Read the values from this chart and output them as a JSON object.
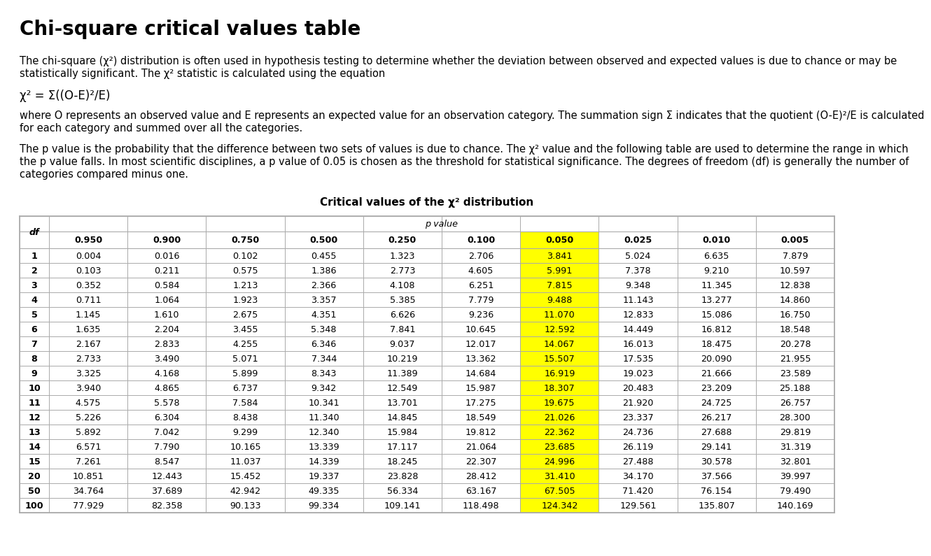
{
  "title": "Chi-square critical values table",
  "background_color": "#ffffff",
  "text_color": "#000000",
  "para1_line1": "The chi-square (χ²) distribution is often used in hypothesis testing to determine whether the deviation between observed and expected values is due to chance or may be",
  "para1_line2": "statistically significant. The χ² statistic is calculated using the equation",
  "equation": "χ² = Σ((O-E)²/E)",
  "para2_line1": "where O represents an observed value and E represents an expected value for an observation category. The summation sign Σ indicates that the quotient (O-E)²/E is calculated",
  "para2_line2": "for each category and summed over all the categories.",
  "para3_line1": "The p value is the probability that the difference between two sets of values is due to chance. The χ² value and the following table are used to determine the range in which",
  "para3_line2": "the p value falls. In most scientific disciplines, a p value of 0.05 is chosen as the threshold for statistical significance. The degrees of freedom (df) is generally the number of",
  "para3_line3": "categories compared minus one.",
  "table_title": "Critical values of the χ² distribution",
  "p_value_label": "p value",
  "col_headers": [
    "df",
    "0.950",
    "0.900",
    "0.750",
    "0.500",
    "0.250",
    "0.100",
    "0.050",
    "0.025",
    "0.010",
    "0.005"
  ],
  "highlight_col_index": 7,
  "highlight_color": "#ffff00",
  "border_color": "#aaaaaa",
  "table_data": [
    [
      "1",
      "0.004",
      "0.016",
      "0.102",
      "0.455",
      "1.323",
      "2.706",
      "3.841",
      "5.024",
      "6.635",
      "7.879"
    ],
    [
      "2",
      "0.103",
      "0.211",
      "0.575",
      "1.386",
      "2.773",
      "4.605",
      "5.991",
      "7.378",
      "9.210",
      "10.597"
    ],
    [
      "3",
      "0.352",
      "0.584",
      "1.213",
      "2.366",
      "4.108",
      "6.251",
      "7.815",
      "9.348",
      "11.345",
      "12.838"
    ],
    [
      "4",
      "0.711",
      "1.064",
      "1.923",
      "3.357",
      "5.385",
      "7.779",
      "9.488",
      "11.143",
      "13.277",
      "14.860"
    ],
    [
      "5",
      "1.145",
      "1.610",
      "2.675",
      "4.351",
      "6.626",
      "9.236",
      "11.070",
      "12.833",
      "15.086",
      "16.750"
    ],
    [
      "6",
      "1.635",
      "2.204",
      "3.455",
      "5.348",
      "7.841",
      "10.645",
      "12.592",
      "14.449",
      "16.812",
      "18.548"
    ],
    [
      "7",
      "2.167",
      "2.833",
      "4.255",
      "6.346",
      "9.037",
      "12.017",
      "14.067",
      "16.013",
      "18.475",
      "20.278"
    ],
    [
      "8",
      "2.733",
      "3.490",
      "5.071",
      "7.344",
      "10.219",
      "13.362",
      "15.507",
      "17.535",
      "20.090",
      "21.955"
    ],
    [
      "9",
      "3.325",
      "4.168",
      "5.899",
      "8.343",
      "11.389",
      "14.684",
      "16.919",
      "19.023",
      "21.666",
      "23.589"
    ],
    [
      "10",
      "3.940",
      "4.865",
      "6.737",
      "9.342",
      "12.549",
      "15.987",
      "18.307",
      "20.483",
      "23.209",
      "25.188"
    ],
    [
      "11",
      "4.575",
      "5.578",
      "7.584",
      "10.341",
      "13.701",
      "17.275",
      "19.675",
      "21.920",
      "24.725",
      "26.757"
    ],
    [
      "12",
      "5.226",
      "6.304",
      "8.438",
      "11.340",
      "14.845",
      "18.549",
      "21.026",
      "23.337",
      "26.217",
      "28.300"
    ],
    [
      "13",
      "5.892",
      "7.042",
      "9.299",
      "12.340",
      "15.984",
      "19.812",
      "22.362",
      "24.736",
      "27.688",
      "29.819"
    ],
    [
      "14",
      "6.571",
      "7.790",
      "10.165",
      "13.339",
      "17.117",
      "21.064",
      "23.685",
      "26.119",
      "29.141",
      "31.319"
    ],
    [
      "15",
      "7.261",
      "8.547",
      "11.037",
      "14.339",
      "18.245",
      "22.307",
      "24.996",
      "27.488",
      "30.578",
      "32.801"
    ],
    [
      "20",
      "10.851",
      "12.443",
      "15.452",
      "19.337",
      "23.828",
      "28.412",
      "31.410",
      "34.170",
      "37.566",
      "39.997"
    ],
    [
      "50",
      "34.764",
      "37.689",
      "42.942",
      "49.335",
      "56.334",
      "63.167",
      "67.505",
      "71.420",
      "76.154",
      "79.490"
    ],
    [
      "100",
      "77.929",
      "82.358",
      "90.133",
      "99.334",
      "109.141",
      "118.498",
      "124.342",
      "129.561",
      "135.807",
      "140.169"
    ]
  ],
  "title_fontsize": 20,
  "body_fontsize": 10.5,
  "table_fontsize": 9.2,
  "equation_fontsize": 12
}
